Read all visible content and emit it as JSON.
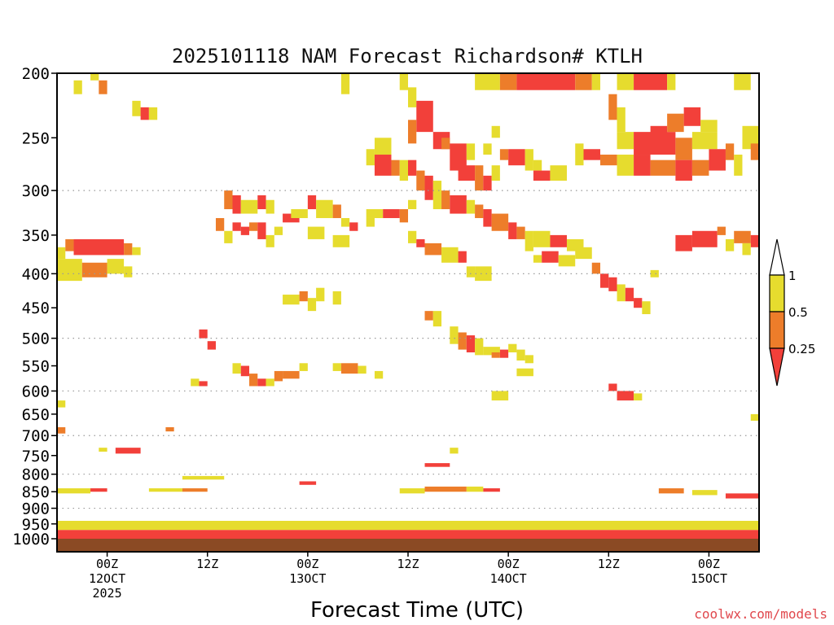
{
  "chart_data": {
    "type": "heatmap",
    "title": "2025101118 NAM Forecast Richardson# KTLH",
    "xlabel": "Forecast Time (UTC)",
    "ylabel": "",
    "y_axis": {
      "unit": "hPa",
      "range": [
        1000,
        200
      ],
      "ticks": [
        200,
        250,
        300,
        350,
        400,
        450,
        500,
        550,
        600,
        650,
        700,
        750,
        800,
        850,
        900,
        950,
        1000
      ],
      "dotted_gridlines": [
        300,
        400,
        500,
        600,
        700,
        800,
        900
      ]
    },
    "x_axis": {
      "unit": "forecast hour",
      "range": [
        0,
        84
      ],
      "ticks": [
        {
          "hour": 6,
          "label": "00Z",
          "sub": "12OCT",
          "sub2": "2025"
        },
        {
          "hour": 18,
          "label": "12Z",
          "sub": "",
          "sub2": ""
        },
        {
          "hour": 30,
          "label": "00Z",
          "sub": "13OCT",
          "sub2": ""
        },
        {
          "hour": 42,
          "label": "12Z",
          "sub": "",
          "sub2": ""
        },
        {
          "hour": 54,
          "label": "00Z",
          "sub": "14OCT",
          "sub2": ""
        },
        {
          "hour": 66,
          "label": "12Z",
          "sub": "",
          "sub2": ""
        },
        {
          "hour": 78,
          "label": "00Z",
          "sub": "15OCT",
          "sub2": ""
        }
      ]
    },
    "colorbar": {
      "labels": [
        "1",
        "0.5",
        "0.25"
      ],
      "colors": {
        "high": "#e6dc2e",
        "mid": "#ed7d2a",
        "low": "#f2403a"
      },
      "bins": [
        "0.5-1",
        "0.25-0.5",
        "<0.25"
      ]
    },
    "ground_color": "#8b4a24",
    "cells": [
      [
        2,
        3,
        205,
        215,
        "y"
      ],
      [
        5,
        6,
        205,
        215,
        "o"
      ],
      [
        4,
        5,
        200,
        205,
        "y"
      ],
      [
        9,
        10,
        220,
        232,
        "y"
      ],
      [
        10,
        11,
        225,
        235,
        "r"
      ],
      [
        11,
        12,
        225,
        235,
        "y"
      ],
      [
        34,
        35,
        200,
        215,
        "y"
      ],
      [
        41,
        42,
        200,
        212,
        "y"
      ],
      [
        50,
        53,
        200,
        212,
        "y"
      ],
      [
        53,
        55,
        200,
        212,
        "o"
      ],
      [
        55,
        62,
        200,
        212,
        "r"
      ],
      [
        62,
        64,
        200,
        212,
        "o"
      ],
      [
        64,
        65,
        200,
        212,
        "y"
      ],
      [
        67,
        69,
        200,
        212,
        "y"
      ],
      [
        69,
        73,
        200,
        212,
        "r"
      ],
      [
        73,
        74,
        200,
        212,
        "y"
      ],
      [
        81,
        83,
        200,
        212,
        "y"
      ],
      [
        42,
        43,
        210,
        225,
        "y"
      ],
      [
        43,
        45,
        220,
        245,
        "r"
      ],
      [
        42,
        43,
        235,
        255,
        "o"
      ],
      [
        45,
        47,
        245,
        260,
        "r"
      ],
      [
        46,
        47,
        250,
        260,
        "o"
      ],
      [
        47,
        49,
        255,
        280,
        "r"
      ],
      [
        49,
        50,
        255,
        270,
        "y"
      ],
      [
        51,
        52,
        255,
        265,
        "y"
      ],
      [
        52,
        53,
        240,
        250,
        "y"
      ],
      [
        48,
        50,
        275,
        290,
        "r"
      ],
      [
        50,
        51,
        275,
        300,
        "o"
      ],
      [
        51,
        52,
        285,
        300,
        "r"
      ],
      [
        52,
        53,
        275,
        290,
        "y"
      ],
      [
        53,
        54,
        260,
        270,
        "o"
      ],
      [
        54,
        56,
        260,
        275,
        "r"
      ],
      [
        56,
        57,
        260,
        280,
        "y"
      ],
      [
        57,
        58,
        270,
        280,
        "y"
      ],
      [
        57,
        59,
        280,
        290,
        "r"
      ],
      [
        59,
        61,
        275,
        290,
        "y"
      ],
      [
        62,
        63,
        255,
        275,
        "y"
      ],
      [
        63,
        65,
        260,
        270,
        "r"
      ],
      [
        65,
        67,
        265,
        275,
        "o"
      ],
      [
        67,
        69,
        245,
        260,
        "y"
      ],
      [
        69,
        74,
        245,
        265,
        "r"
      ],
      [
        74,
        76,
        250,
        270,
        "o"
      ],
      [
        76,
        79,
        245,
        260,
        "y"
      ],
      [
        71,
        73,
        240,
        250,
        "r"
      ],
      [
        73,
        75,
        230,
        245,
        "o"
      ],
      [
        75,
        77,
        225,
        240,
        "r"
      ],
      [
        77,
        79,
        235,
        245,
        "y"
      ],
      [
        66,
        67,
        215,
        235,
        "o"
      ],
      [
        67,
        68,
        225,
        245,
        "y"
      ],
      [
        67,
        69,
        265,
        285,
        "y"
      ],
      [
        69,
        71,
        265,
        285,
        "r"
      ],
      [
        71,
        74,
        270,
        285,
        "o"
      ],
      [
        74,
        76,
        270,
        290,
        "r"
      ],
      [
        76,
        78,
        270,
        285,
        "o"
      ],
      [
        78,
        80,
        260,
        280,
        "r"
      ],
      [
        80,
        81,
        255,
        270,
        "o"
      ],
      [
        81,
        82,
        265,
        285,
        "y"
      ],
      [
        82,
        84,
        240,
        260,
        "y"
      ],
      [
        83,
        84,
        255,
        270,
        "o"
      ],
      [
        38,
        40,
        250,
        265,
        "y"
      ],
      [
        37,
        38,
        260,
        275,
        "y"
      ],
      [
        38,
        40,
        265,
        285,
        "r"
      ],
      [
        40,
        41,
        270,
        285,
        "o"
      ],
      [
        41,
        42,
        270,
        290,
        "y"
      ],
      [
        42,
        43,
        270,
        285,
        "r"
      ],
      [
        43,
        44,
        280,
        300,
        "o"
      ],
      [
        44,
        45,
        285,
        310,
        "r"
      ],
      [
        45,
        46,
        290,
        320,
        "y"
      ],
      [
        46,
        47,
        300,
        320,
        "o"
      ],
      [
        47,
        49,
        305,
        325,
        "r"
      ],
      [
        49,
        50,
        310,
        325,
        "y"
      ],
      [
        50,
        51,
        315,
        330,
        "o"
      ],
      [
        51,
        52,
        320,
        340,
        "r"
      ],
      [
        52,
        54,
        325,
        345,
        "o"
      ],
      [
        54,
        55,
        335,
        355,
        "r"
      ],
      [
        55,
        56,
        340,
        355,
        "o"
      ],
      [
        56,
        57,
        345,
        370,
        "y"
      ],
      [
        57,
        59,
        345,
        365,
        "y"
      ],
      [
        59,
        61,
        350,
        365,
        "r"
      ],
      [
        61,
        63,
        355,
        370,
        "y"
      ],
      [
        37,
        39,
        320,
        330,
        "y"
      ],
      [
        39,
        41,
        320,
        330,
        "r"
      ],
      [
        41,
        42,
        320,
        335,
        "o"
      ],
      [
        42,
        43,
        310,
        320,
        "y"
      ],
      [
        20,
        21,
        300,
        320,
        "o"
      ],
      [
        21,
        22,
        305,
        325,
        "r"
      ],
      [
        22,
        24,
        310,
        325,
        "y"
      ],
      [
        24,
        25,
        305,
        320,
        "r"
      ],
      [
        25,
        26,
        310,
        325,
        "y"
      ],
      [
        19,
        20,
        330,
        345,
        "o"
      ],
      [
        20,
        21,
        345,
        360,
        "y"
      ],
      [
        21,
        22,
        335,
        345,
        "r"
      ],
      [
        22,
        23,
        340,
        350,
        "r"
      ],
      [
        23,
        24,
        335,
        345,
        "o"
      ],
      [
        24,
        25,
        335,
        355,
        "r"
      ],
      [
        25,
        26,
        350,
        365,
        "y"
      ],
      [
        26,
        27,
        340,
        350,
        "y"
      ],
      [
        27,
        29,
        325,
        335,
        "r"
      ],
      [
        28,
        30,
        320,
        330,
        "y"
      ],
      [
        30,
        31,
        305,
        320,
        "r"
      ],
      [
        31,
        33,
        310,
        330,
        "y"
      ],
      [
        33,
        34,
        315,
        330,
        "o"
      ],
      [
        34,
        35,
        330,
        340,
        "y"
      ],
      [
        30,
        32,
        340,
        355,
        "y"
      ],
      [
        33,
        35,
        350,
        365,
        "y"
      ],
      [
        35,
        36,
        335,
        345,
        "r"
      ],
      [
        37,
        38,
        330,
        340,
        "y"
      ],
      [
        42,
        43,
        345,
        360,
        "y"
      ],
      [
        43,
        44,
        355,
        365,
        "r"
      ],
      [
        44,
        46,
        360,
        375,
        "o"
      ],
      [
        46,
        48,
        365,
        385,
        "y"
      ],
      [
        48,
        49,
        370,
        385,
        "r"
      ],
      [
        49,
        50,
        390,
        405,
        "y"
      ],
      [
        50,
        52,
        390,
        410,
        "y"
      ],
      [
        57,
        58,
        375,
        385,
        "y"
      ],
      [
        58,
        60,
        370,
        385,
        "r"
      ],
      [
        60,
        62,
        375,
        390,
        "y"
      ],
      [
        62,
        64,
        365,
        380,
        "y"
      ],
      [
        64,
        65,
        385,
        400,
        "o"
      ],
      [
        65,
        66,
        400,
        420,
        "r"
      ],
      [
        66,
        67,
        405,
        425,
        "r"
      ],
      [
        67,
        68,
        415,
        440,
        "y"
      ],
      [
        68,
        69,
        420,
        440,
        "r"
      ],
      [
        69,
        70,
        435,
        450,
        "r"
      ],
      [
        70,
        71,
        440,
        460,
        "y"
      ],
      [
        71,
        72,
        395,
        405,
        "y"
      ],
      [
        74,
        76,
        350,
        370,
        "r"
      ],
      [
        76,
        79,
        345,
        365,
        "r"
      ],
      [
        79,
        80,
        340,
        350,
        "o"
      ],
      [
        80,
        81,
        355,
        370,
        "y"
      ],
      [
        81,
        83,
        345,
        360,
        "o"
      ],
      [
        83,
        84,
        350,
        365,
        "r"
      ],
      [
        82,
        83,
        360,
        375,
        "y"
      ],
      [
        0,
        1,
        365,
        380,
        "y"
      ],
      [
        1,
        2,
        355,
        370,
        "o"
      ],
      [
        2,
        8,
        355,
        375,
        "r"
      ],
      [
        8,
        9,
        360,
        375,
        "o"
      ],
      [
        9,
        10,
        365,
        375,
        "y"
      ],
      [
        0,
        3,
        380,
        410,
        "y"
      ],
      [
        3,
        6,
        385,
        405,
        "o"
      ],
      [
        6,
        8,
        380,
        400,
        "y"
      ],
      [
        8,
        9,
        390,
        405,
        "y"
      ],
      [
        27,
        29,
        430,
        445,
        "y"
      ],
      [
        29,
        30,
        425,
        440,
        "o"
      ],
      [
        30,
        31,
        435,
        455,
        "y"
      ],
      [
        31,
        32,
        420,
        440,
        "y"
      ],
      [
        33,
        34,
        425,
        445,
        "y"
      ],
      [
        44,
        45,
        455,
        470,
        "o"
      ],
      [
        45,
        46,
        455,
        480,
        "y"
      ],
      [
        47,
        48,
        480,
        510,
        "y"
      ],
      [
        48,
        49,
        490,
        520,
        "o"
      ],
      [
        49,
        50,
        495,
        525,
        "r"
      ],
      [
        50,
        51,
        500,
        530,
        "y"
      ],
      [
        51,
        53,
        515,
        530,
        "y"
      ],
      [
        53,
        54,
        520,
        535,
        "r"
      ],
      [
        54,
        55,
        510,
        525,
        "y"
      ],
      [
        55,
        56,
        520,
        540,
        "y"
      ],
      [
        56,
        57,
        530,
        545,
        "y"
      ],
      [
        52,
        53,
        525,
        535,
        "o"
      ],
      [
        55,
        57,
        555,
        570,
        "y"
      ],
      [
        17,
        18,
        485,
        500,
        "r"
      ],
      [
        18,
        19,
        505,
        520,
        "r"
      ],
      [
        21,
        22,
        545,
        565,
        "y"
      ],
      [
        22,
        23,
        550,
        570,
        "r"
      ],
      [
        23,
        24,
        565,
        590,
        "o"
      ],
      [
        24,
        25,
        575,
        590,
        "r"
      ],
      [
        25,
        26,
        575,
        590,
        "y"
      ],
      [
        26,
        27,
        560,
        580,
        "o"
      ],
      [
        27,
        29,
        560,
        575,
        "o"
      ],
      [
        29,
        30,
        545,
        560,
        "y"
      ],
      [
        33,
        34,
        545,
        560,
        "y"
      ],
      [
        34,
        36,
        545,
        565,
        "o"
      ],
      [
        36,
        37,
        550,
        565,
        "y"
      ],
      [
        38,
        39,
        560,
        575,
        "y"
      ],
      [
        16,
        17,
        575,
        590,
        "y"
      ],
      [
        17,
        18,
        580,
        590,
        "r"
      ],
      [
        52,
        54,
        600,
        620,
        "y"
      ],
      [
        66,
        67,
        585,
        600,
        "r"
      ],
      [
        67,
        69,
        600,
        620,
        "r"
      ],
      [
        69,
        70,
        605,
        620,
        "y"
      ],
      [
        0,
        1,
        620,
        635,
        "y"
      ],
      [
        83,
        84,
        650,
        665,
        "y"
      ],
      [
        0,
        1,
        680,
        695,
        "o"
      ],
      [
        13,
        14,
        680,
        690,
        "o"
      ],
      [
        5,
        6,
        730,
        740,
        "y"
      ],
      [
        7,
        10,
        730,
        745,
        "r"
      ],
      [
        47,
        48,
        730,
        745,
        "y"
      ],
      [
        44,
        47,
        770,
        780,
        "r"
      ],
      [
        15,
        20,
        805,
        815,
        "y"
      ],
      [
        29,
        31,
        820,
        830,
        "r"
      ],
      [
        0,
        4,
        840,
        855,
        "y"
      ],
      [
        4,
        6,
        840,
        850,
        "r"
      ],
      [
        11,
        15,
        840,
        850,
        "y"
      ],
      [
        15,
        18,
        840,
        850,
        "o"
      ],
      [
        41,
        44,
        840,
        855,
        "y"
      ],
      [
        44,
        49,
        835,
        850,
        "o"
      ],
      [
        49,
        51,
        835,
        850,
        "y"
      ],
      [
        51,
        53,
        840,
        850,
        "r"
      ],
      [
        72,
        75,
        840,
        855,
        "o"
      ],
      [
        76,
        79,
        845,
        860,
        "y"
      ],
      [
        80,
        84,
        855,
        870,
        "r"
      ],
      [
        0,
        84,
        970,
        1000,
        "r"
      ],
      [
        0,
        84,
        940,
        970,
        "y"
      ]
    ]
  },
  "footer": {
    "credit": "coolwx.com/models"
  }
}
